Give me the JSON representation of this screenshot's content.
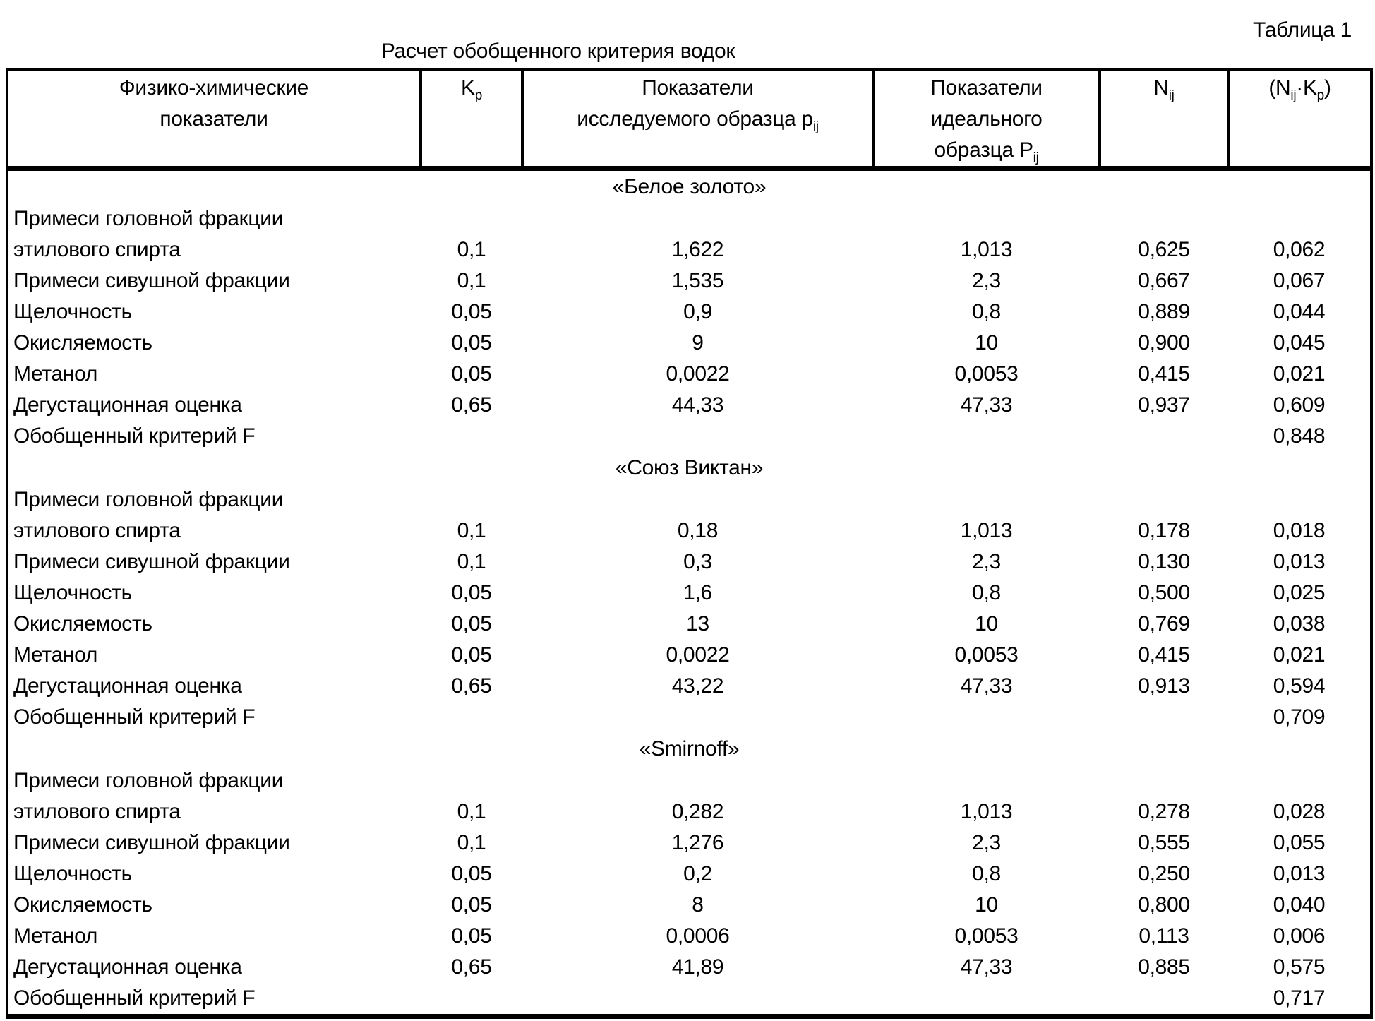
{
  "meta": {
    "table_label": "Таблица 1",
    "title": "Расчет обобщенного критерия водок"
  },
  "header": {
    "col1_line1": "Физико-химические",
    "col1_line2": "показатели",
    "kp_base": "K",
    "kp_sub": "p",
    "col3_line1": "Показатели",
    "col3_line2_text": "исследуемого образца p",
    "col3_line2_sub": "ij",
    "col4_line1": "Показатели",
    "col4_line2": "идеального",
    "col4_line3_text": "образца P",
    "col4_line3_sub": "ij",
    "n_base": "N",
    "n_sub": "ij",
    "nk_p1": "(N",
    "nk_s1": "ij",
    "nk_p2": "·K",
    "nk_s2": "p",
    "nk_p3": ")"
  },
  "sections": [
    {
      "name": "«Белое золото»",
      "rows": [
        {
          "label": "Примеси головной фракции",
          "kp": "",
          "p": "",
          "pi": "",
          "n": "",
          "nk": ""
        },
        {
          "label": "этилового спирта",
          "kp": "0,1",
          "p": "1,622",
          "pi": "1,013",
          "n": "0,625",
          "nk": "0,062"
        },
        {
          "label": "Примеси сивушной фракции",
          "kp": "0,1",
          "p": "1,535",
          "pi": "2,3",
          "n": "0,667",
          "nk": "0,067"
        },
        {
          "label": "Щелочность",
          "kp": "0,05",
          "p": "0,9",
          "pi": "0,8",
          "n": "0,889",
          "nk": "0,044"
        },
        {
          "label": "Окисляемость",
          "kp": "0,05",
          "p": "9",
          "pi": "10",
          "n": "0,900",
          "nk": "0,045"
        },
        {
          "label": "Метанол",
          "kp": "0,05",
          "p": "0,0022",
          "pi": "0,0053",
          "n": "0,415",
          "nk": "0,021"
        },
        {
          "label": "Дегустационная оценка",
          "kp": "0,65",
          "p": "44,33",
          "pi": "47,33",
          "n": "0,937",
          "nk": "0,609"
        },
        {
          "label": "Обобщенный критерий F",
          "kp": "",
          "p": "",
          "pi": "",
          "n": "",
          "nk": "0,848"
        }
      ]
    },
    {
      "name": "«Союз Виктан»",
      "rows": [
        {
          "label": "Примеси головной фракции",
          "kp": "",
          "p": "",
          "pi": "",
          "n": "",
          "nk": ""
        },
        {
          "label": "этилового спирта",
          "kp": "0,1",
          "p": "0,18",
          "pi": "1,013",
          "n": "0,178",
          "nk": "0,018"
        },
        {
          "label": "Примеси сивушной фракции",
          "kp": "0,1",
          "p": "0,3",
          "pi": "2,3",
          "n": "0,130",
          "nk": "0,013"
        },
        {
          "label": "Щелочность",
          "kp": "0,05",
          "p": "1,6",
          "pi": "0,8",
          "n": "0,500",
          "nk": "0,025"
        },
        {
          "label": "Окисляемость",
          "kp": "0,05",
          "p": "13",
          "pi": "10",
          "n": "0,769",
          "nk": "0,038"
        },
        {
          "label": "Метанол",
          "kp": "0,05",
          "p": "0,0022",
          "pi": "0,0053",
          "n": "0,415",
          "nk": "0,021"
        },
        {
          "label": "Дегустационная оценка",
          "kp": "0,65",
          "p": "43,22",
          "pi": "47,33",
          "n": "0,913",
          "nk": "0,594"
        },
        {
          "label": "Обобщенный критерий F",
          "kp": "",
          "p": "",
          "pi": "",
          "n": "",
          "nk": "0,709"
        }
      ]
    },
    {
      "name": "«Smirnoff»",
      "rows": [
        {
          "label": "Примеси головной фракции",
          "kp": "",
          "p": "",
          "pi": "",
          "n": "",
          "nk": ""
        },
        {
          "label": "этилового спирта",
          "kp": "0,1",
          "p": "0,282",
          "pi": "1,013",
          "n": "0,278",
          "nk": "0,028"
        },
        {
          "label": "Примеси сивушной фракции",
          "kp": "0,1",
          "p": "1,276",
          "pi": "2,3",
          "n": "0,555",
          "nk": "0,055"
        },
        {
          "label": "Щелочность",
          "kp": "0,05",
          "p": "0,2",
          "pi": "0,8",
          "n": "0,250",
          "nk": "0,013"
        },
        {
          "label": "Окисляемость",
          "kp": "0,05",
          "p": "8",
          "pi": "10",
          "n": "0,800",
          "nk": "0,040"
        },
        {
          "label": "Метанол",
          "kp": "0,05",
          "p": "0,0006",
          "pi": "0,0053",
          "n": "0,113",
          "nk": "0,006"
        },
        {
          "label": "Дегустационная оценка",
          "kp": "0,65",
          "p": "41,89",
          "pi": "47,33",
          "n": "0,885",
          "nk": "0,575"
        },
        {
          "label": "Обобщенный критерий F",
          "kp": "",
          "p": "",
          "pi": "",
          "n": "",
          "nk": "0,717"
        }
      ]
    }
  ]
}
